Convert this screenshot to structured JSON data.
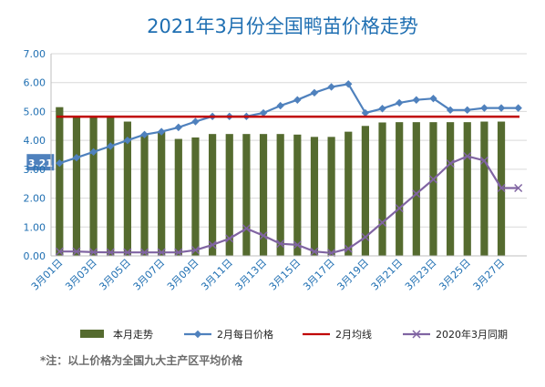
{
  "chart_data": {
    "type": "bar",
    "title": "2021年3月份全国鸭苗价格走势",
    "ylim": [
      0,
      7
    ],
    "yticks": [
      "0.00",
      "1.00",
      "2.00",
      "3.00",
      "4.00",
      "5.00",
      "6.00",
      "7.00"
    ],
    "categories": [
      "3月01日",
      "3月02日",
      "3月03日",
      "3月04日",
      "3月05日",
      "3月06日",
      "3月07日",
      "3月08日",
      "3月09日",
      "3月10日",
      "3月11日",
      "3月12日",
      "3月13日",
      "3月14日",
      "3月15日",
      "3月16日",
      "3月17日",
      "3月18日",
      "3月19日",
      "3月20日",
      "3月21日",
      "3月22日",
      "3月23日",
      "3月24日",
      "3月25日",
      "3月26日",
      "3月27日",
      "3月28日"
    ],
    "xtick_labels": [
      "3月01日",
      "3月03日",
      "3月05日",
      "3月07日",
      "3月09日",
      "3月11日",
      "3月13日",
      "3月15日",
      "3月17日",
      "3月19日",
      "3月21日",
      "3月23日",
      "3月25日",
      "3月27日"
    ],
    "series": [
      {
        "name": "本月走势",
        "kind": "bar",
        "color": "#556B2F",
        "values": [
          5.15,
          4.8,
          4.8,
          4.8,
          4.65,
          4.2,
          4.3,
          4.05,
          4.1,
          4.22,
          4.22,
          4.22,
          4.22,
          4.22,
          4.2,
          4.12,
          4.12,
          4.3,
          4.5,
          4.62,
          4.63,
          4.63,
          4.63,
          4.63,
          4.63,
          4.65,
          4.65,
          null
        ]
      },
      {
        "name": "2月每日价格",
        "kind": "line",
        "color": "#4F81BD",
        "marker": "diamond",
        "values": [
          3.21,
          3.4,
          3.6,
          3.8,
          4.0,
          4.2,
          4.3,
          4.45,
          4.65,
          4.83,
          4.83,
          4.83,
          4.95,
          5.2,
          5.4,
          5.65,
          5.85,
          5.95,
          4.95,
          5.1,
          5.3,
          5.4,
          5.45,
          5.05,
          5.05,
          5.12,
          5.12,
          5.12
        ]
      },
      {
        "name": "2月均线",
        "kind": "line",
        "color": "#C00000",
        "values": [
          4.82,
          4.82,
          4.82,
          4.82,
          4.82,
          4.82,
          4.82,
          4.82,
          4.82,
          4.82,
          4.82,
          4.82,
          4.82,
          4.82,
          4.82,
          4.82,
          4.82,
          4.82,
          4.82,
          4.82,
          4.82,
          4.82,
          4.82,
          4.82,
          4.82,
          4.82,
          4.82,
          4.82
        ]
      },
      {
        "name": "2020年3月同期",
        "kind": "line",
        "color": "#8064A2",
        "marker": "x",
        "values": [
          0.15,
          0.15,
          0.13,
          0.12,
          0.12,
          0.12,
          0.12,
          0.12,
          0.2,
          0.38,
          0.6,
          0.95,
          0.7,
          0.42,
          0.38,
          0.15,
          0.1,
          0.25,
          0.65,
          1.15,
          1.65,
          2.15,
          2.65,
          3.2,
          3.45,
          3.3,
          2.35,
          2.35
        ]
      }
    ],
    "data_labels": [
      {
        "series": "2月每日价格",
        "index": 0,
        "text": "3.21"
      }
    ],
    "legend_position": "bottom",
    "footnote": "*注：以上价格为全国九大主产区平均价格",
    "grid": true
  }
}
